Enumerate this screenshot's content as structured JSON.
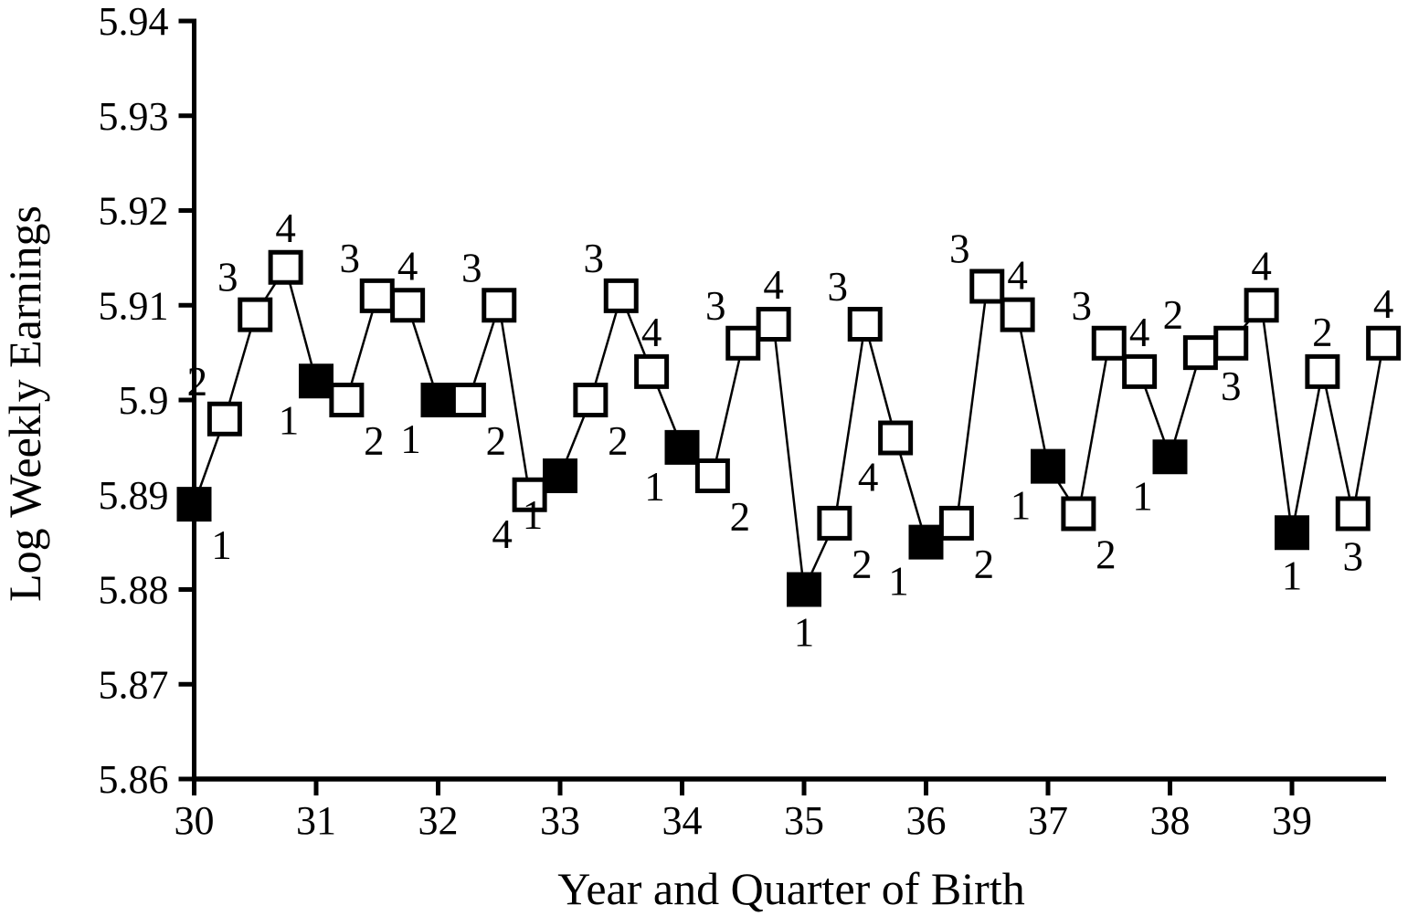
{
  "figure": {
    "background": "#ffffff",
    "ink_color": "#000000"
  },
  "chart_data": {
    "type": "line",
    "title": "",
    "xlabel": "Year and Quarter of Birth",
    "ylabel": "Log Weekly Earnings",
    "ylim": [
      5.86,
      5.94
    ],
    "xlim_years": [
      30,
      39
    ],
    "grid": "off",
    "legend": "none",
    "marker_note": "filled square = quarter 1 of birth, open squares = quarters 2-4; each point labeled with its quarter number",
    "yticks": [
      {
        "value": 5.94,
        "label": "5.94"
      },
      {
        "value": 5.93,
        "label": "5.93"
      },
      {
        "value": 5.92,
        "label": "5.92"
      },
      {
        "value": 5.91,
        "label": "5.91"
      },
      {
        "value": 5.9,
        "label": "5.9"
      },
      {
        "value": 5.89,
        "label": "5.89"
      },
      {
        "value": 5.88,
        "label": "5.88"
      },
      {
        "value": 5.87,
        "label": "5.87"
      },
      {
        "value": 5.86,
        "label": "5.86"
      }
    ],
    "xticks": [
      {
        "value": 30,
        "label": "30"
      },
      {
        "value": 31,
        "label": "31"
      },
      {
        "value": 32,
        "label": "32"
      },
      {
        "value": 33,
        "label": "33"
      },
      {
        "value": 34,
        "label": "34"
      },
      {
        "value": 35,
        "label": "35"
      },
      {
        "value": 36,
        "label": "36"
      },
      {
        "value": 37,
        "label": "37"
      },
      {
        "value": 38,
        "label": "38"
      },
      {
        "value": 39,
        "label": "39"
      }
    ],
    "points": [
      {
        "year": 30,
        "quarter": 1,
        "value": 5.889,
        "label": "1",
        "filled": true,
        "label_pos": "br"
      },
      {
        "year": 30,
        "quarter": 2,
        "value": 5.898,
        "label": "2",
        "filled": false,
        "label_pos": "al"
      },
      {
        "year": 30,
        "quarter": 3,
        "value": 5.909,
        "label": "3",
        "filled": false,
        "label_pos": "al"
      },
      {
        "year": 30,
        "quarter": 4,
        "value": 5.914,
        "label": "4",
        "filled": false,
        "label_pos": "a"
      },
      {
        "year": 31,
        "quarter": 1,
        "value": 5.902,
        "label": "1",
        "filled": true,
        "label_pos": "bl"
      },
      {
        "year": 31,
        "quarter": 2,
        "value": 5.9,
        "label": "2",
        "filled": false,
        "label_pos": "br"
      },
      {
        "year": 31,
        "quarter": 3,
        "value": 5.911,
        "label": "3",
        "filled": false,
        "label_pos": "al"
      },
      {
        "year": 31,
        "quarter": 4,
        "value": 5.91,
        "label": "4",
        "filled": false,
        "label_pos": "a"
      },
      {
        "year": 32,
        "quarter": 1,
        "value": 5.9,
        "label": "1",
        "filled": true,
        "label_pos": "bl"
      },
      {
        "year": 32,
        "quarter": 2,
        "value": 5.9,
        "label": "2",
        "filled": false,
        "label_pos": "br"
      },
      {
        "year": 32,
        "quarter": 3,
        "value": 5.91,
        "label": "3",
        "filled": false,
        "label_pos": "al"
      },
      {
        "year": 32,
        "quarter": 4,
        "value": 5.89,
        "label": "4",
        "filled": false,
        "label_pos": "bl"
      },
      {
        "year": 33,
        "quarter": 1,
        "value": 5.892,
        "label": "1",
        "filled": true,
        "label_pos": "bl"
      },
      {
        "year": 33,
        "quarter": 2,
        "value": 5.9,
        "label": "2",
        "filled": false,
        "label_pos": "br"
      },
      {
        "year": 33,
        "quarter": 3,
        "value": 5.911,
        "label": "3",
        "filled": false,
        "label_pos": "al"
      },
      {
        "year": 33,
        "quarter": 4,
        "value": 5.903,
        "label": "4",
        "filled": false,
        "label_pos": "a"
      },
      {
        "year": 34,
        "quarter": 1,
        "value": 5.895,
        "label": "1",
        "filled": true,
        "label_pos": "bl"
      },
      {
        "year": 34,
        "quarter": 2,
        "value": 5.892,
        "label": "2",
        "filled": false,
        "label_pos": "br"
      },
      {
        "year": 34,
        "quarter": 3,
        "value": 5.906,
        "label": "3",
        "filled": false,
        "label_pos": "al"
      },
      {
        "year": 34,
        "quarter": 4,
        "value": 5.908,
        "label": "4",
        "filled": false,
        "label_pos": "a"
      },
      {
        "year": 35,
        "quarter": 1,
        "value": 5.88,
        "label": "1",
        "filled": true,
        "label_pos": "b"
      },
      {
        "year": 35,
        "quarter": 2,
        "value": 5.887,
        "label": "2",
        "filled": false,
        "label_pos": "br"
      },
      {
        "year": 35,
        "quarter": 3,
        "value": 5.908,
        "label": "3",
        "filled": false,
        "label_pos": "al"
      },
      {
        "year": 35,
        "quarter": 4,
        "value": 5.896,
        "label": "4",
        "filled": false,
        "label_pos": "bl"
      },
      {
        "year": 36,
        "quarter": 1,
        "value": 5.885,
        "label": "1",
        "filled": true,
        "label_pos": "bl"
      },
      {
        "year": 36,
        "quarter": 2,
        "value": 5.887,
        "label": "2",
        "filled": false,
        "label_pos": "br"
      },
      {
        "year": 36,
        "quarter": 3,
        "value": 5.912,
        "label": "3",
        "filled": false,
        "label_pos": "al"
      },
      {
        "year": 36,
        "quarter": 4,
        "value": 5.909,
        "label": "4",
        "filled": false,
        "label_pos": "a"
      },
      {
        "year": 37,
        "quarter": 1,
        "value": 5.893,
        "label": "1",
        "filled": true,
        "label_pos": "bl"
      },
      {
        "year": 37,
        "quarter": 2,
        "value": 5.888,
        "label": "2",
        "filled": false,
        "label_pos": "br"
      },
      {
        "year": 37,
        "quarter": 3,
        "value": 5.906,
        "label": "3",
        "filled": false,
        "label_pos": "al"
      },
      {
        "year": 37,
        "quarter": 4,
        "value": 5.903,
        "label": "4",
        "filled": false,
        "label_pos": "a"
      },
      {
        "year": 38,
        "quarter": 1,
        "value": 5.894,
        "label": "1",
        "filled": true,
        "label_pos": "bl"
      },
      {
        "year": 38,
        "quarter": 2,
        "value": 5.905,
        "label": "2",
        "filled": false,
        "label_pos": "al"
      },
      {
        "year": 38,
        "quarter": 3,
        "value": 5.906,
        "label": "3",
        "filled": false,
        "label_pos": "b"
      },
      {
        "year": 38,
        "quarter": 4,
        "value": 5.91,
        "label": "4",
        "filled": false,
        "label_pos": "a"
      },
      {
        "year": 39,
        "quarter": 1,
        "value": 5.886,
        "label": "1",
        "filled": true,
        "label_pos": "b"
      },
      {
        "year": 39,
        "quarter": 2,
        "value": 5.903,
        "label": "2",
        "filled": false,
        "label_pos": "a"
      },
      {
        "year": 39,
        "quarter": 3,
        "value": 5.888,
        "label": "3",
        "filled": false,
        "label_pos": "b"
      },
      {
        "year": 39,
        "quarter": 4,
        "value": 5.906,
        "label": "4",
        "filled": false,
        "label_pos": "a"
      }
    ]
  }
}
